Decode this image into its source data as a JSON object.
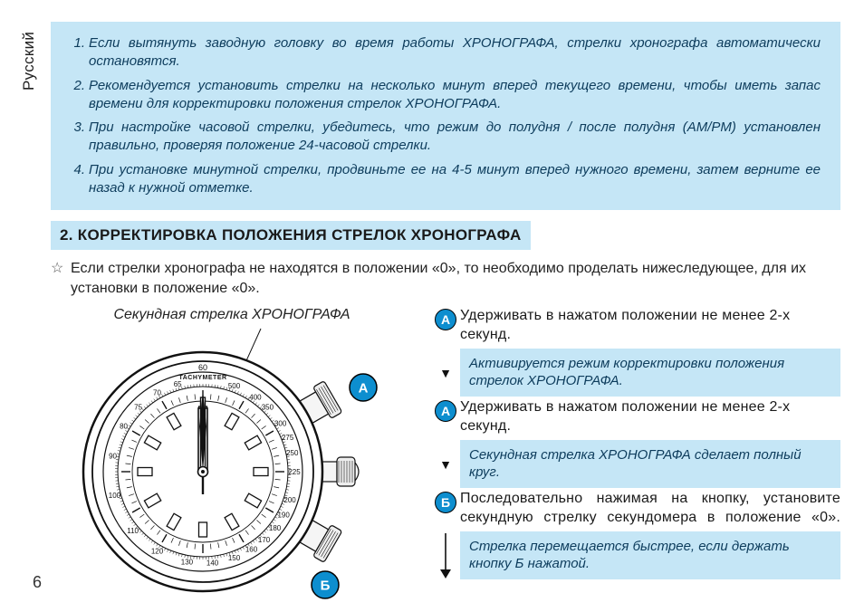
{
  "sideLabel": "Русский",
  "pageNumber": "6",
  "notes": [
    {
      "num": "1.",
      "text": "Если вытянуть заводную головку во время работы ХРОНОГРАФА, стрелки хронографа автоматически остановятся."
    },
    {
      "num": "2.",
      "text": "Рекомендуется установить стрелки на несколько минут вперед текущего времени, чтобы иметь запас времени для корректировки положения  стрелок ХРОНОГРАФА."
    },
    {
      "num": "3.",
      "text": "При настройке часовой стрелки, убедитесь, что режим до полудня / после полудня (AM/PM) установлен правильно, проверяя положение 24-часовой стрелки."
    },
    {
      "num": "4.",
      "text": "При установке минутной стрелки, продвиньте ее на 4-5 минут вперед нужного времени, затем верните ее назад к нужной отметке."
    }
  ],
  "sectionHeading": "2.  КОРРЕКТИРОВКА ПОЛОЖЕНИЯ СТРЕЛОК ХРОНОГРАФА",
  "introText": "Если стрелки хронографа не находятся в положении «0», то необходимо проделать нижеследующее, для их установки  в положение «0».",
  "watchTitle": "Секундная стрелка ХРОНОГРАФА",
  "watchLabels": {
    "A": "А",
    "B": "Б",
    "tachy": "TACHYMETER",
    "tachy60": "60"
  },
  "tachyNumbers": [
    "500",
    "400",
    "350",
    "300",
    "275",
    "250",
    "225",
    "200",
    "190",
    "180",
    "170",
    "160",
    "150",
    "140",
    "130",
    "120",
    "110",
    "100",
    "90",
    "80",
    "75",
    "70",
    "65"
  ],
  "steps": [
    {
      "bullet": "А",
      "text": "Удерживать в нажатом положении не менее 2-х секунд."
    },
    {
      "result": "Активируется режим корректировки положения стрелок ХРОНОГРАФА."
    },
    {
      "bullet": "А",
      "text": "Удерживать в нажатом положении не менее 2-х секунд."
    },
    {
      "result": "Секундная стрелка ХРОНОГРАФА сделает полный круг."
    },
    {
      "bullet": "Б",
      "text": "Последовательно нажимая на кнопку, установите секундную стрелку секундомера в положение «0».",
      "justified": true
    },
    {
      "result": "Стрелка перемещается быстрее, если держать кнопку Б нажатой."
    }
  ],
  "colors": {
    "boxBg": "#c5e6f6",
    "boxText": "#0d3c5c",
    "bulletBg": "#0d8ecf",
    "bodyText": "#1a1a1a"
  }
}
